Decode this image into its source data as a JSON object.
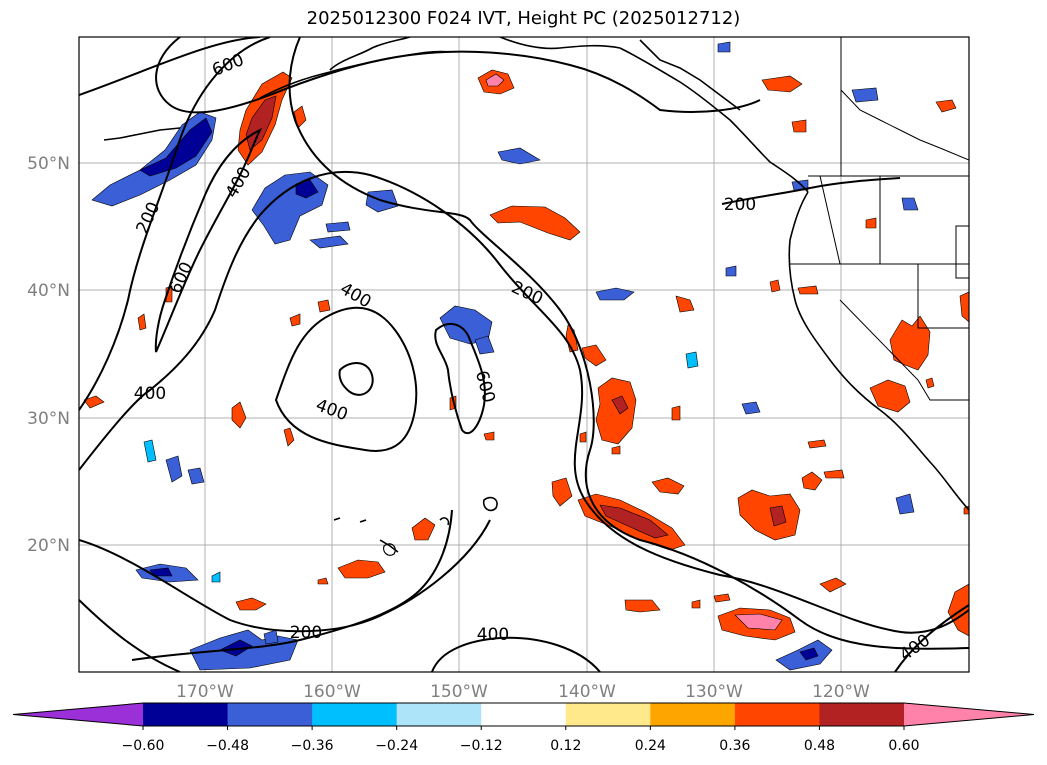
{
  "title": "2025012300 F024 IVT, Height PC (2025012712)",
  "lat_labels": [
    "50°N",
    "40°N",
    "30°N",
    "20°N"
  ],
  "lon_labels": [
    "170°W",
    "160°W",
    "150°W",
    "140°W",
    "130°W",
    "120°W"
  ],
  "contour_labels": [
    "600",
    "400",
    "200",
    "600",
    "400",
    "200",
    "400",
    "200",
    "400",
    "600",
    "400",
    "200",
    "400",
    "400"
  ],
  "colorbar": {
    "ticks": [
      "−0.60",
      "−0.48",
      "−0.36",
      "−0.24",
      "−0.12",
      "0.12",
      "0.24",
      "0.36",
      "0.48",
      "0.60"
    ],
    "colors": [
      "#9b30d9",
      "#000096",
      "#3a5fd6",
      "#00bfff",
      "#aee4fa",
      "#ffffff",
      "#ffe98a",
      "#ffa500",
      "#ff4500",
      "#b22222",
      "#ff82ab"
    ]
  },
  "colors": {
    "frame": "#000000",
    "grid": "#b0b0b0",
    "coast": "#000000",
    "contour": "#000000"
  }
}
